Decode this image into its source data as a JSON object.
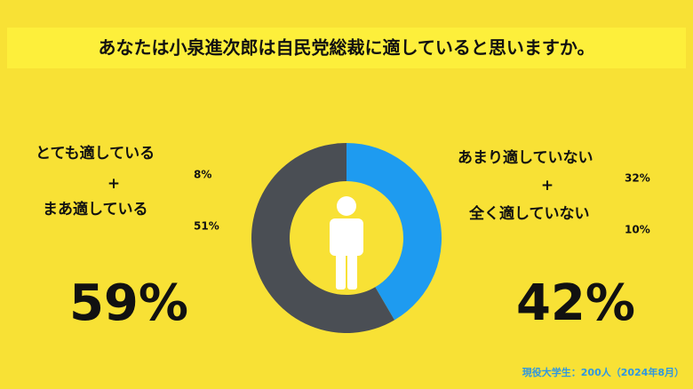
{
  "chart_data": {
    "type": "donut",
    "title": "あなたは小泉進次郎は自民党総裁に適していると思いますか。",
    "groups": [
      {
        "color": "#4a4e54",
        "labels": [
          "とても適している",
          "まあ適している"
        ],
        "values": [
          8,
          51
        ],
        "value_labels": [
          "8%",
          "51%"
        ],
        "separator": "+",
        "total": 59,
        "total_label": "59%"
      },
      {
        "color": "#1e9bf0",
        "labels": [
          "あまり適していない",
          "全く適していない"
        ],
        "values": [
          32,
          10
        ],
        "value_labels": [
          "32%",
          "10%"
        ],
        "separator": "+",
        "total": 42,
        "total_label": "42%"
      }
    ],
    "note": "現役大学生：200人（2024年8月）"
  }
}
